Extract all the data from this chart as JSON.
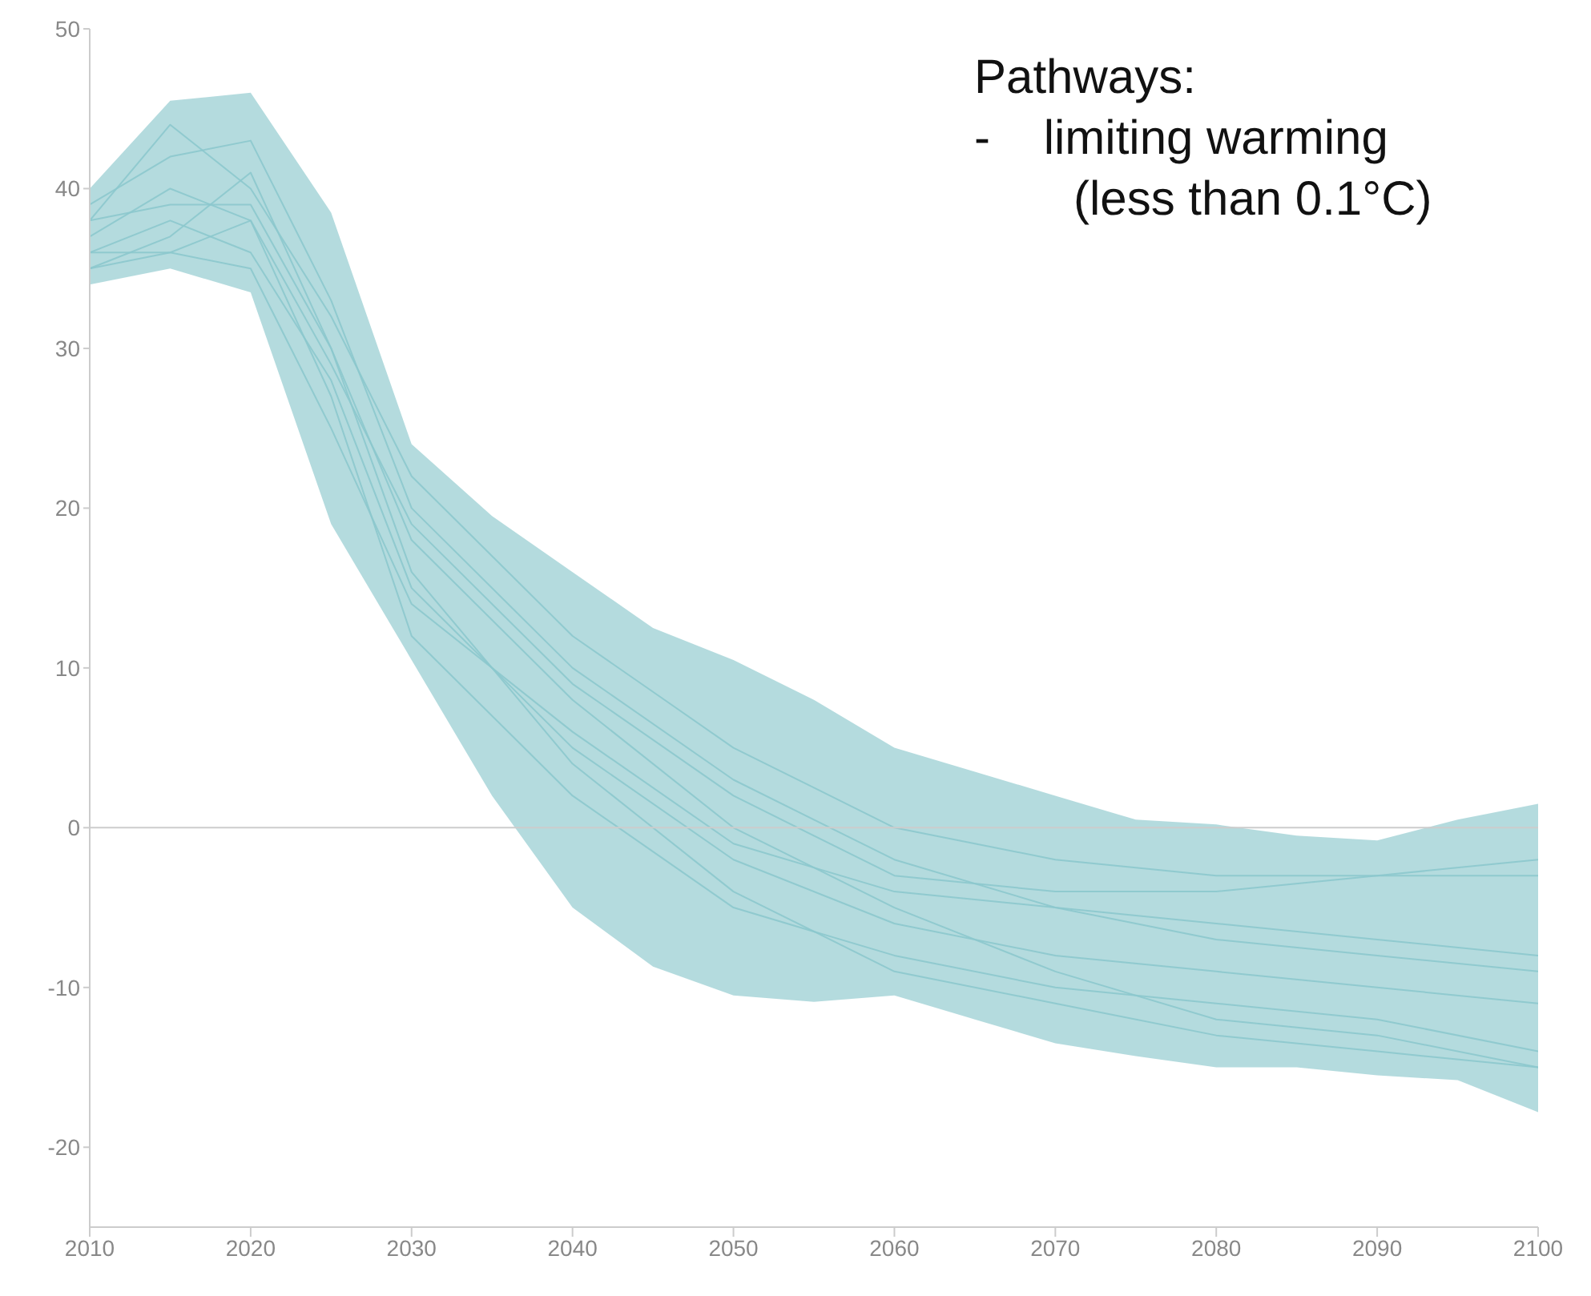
{
  "chart_data": {
    "type": "line",
    "annotations": [
      "Pathways:",
      "-    limiting warming",
      "(less than 0.1°C)"
    ],
    "xlim": [
      2010,
      2100
    ],
    "xticks": [
      2010,
      2020,
      2030,
      2040,
      2050,
      2060,
      2070,
      2080,
      2090,
      2100
    ],
    "ylim": [
      -25,
      50
    ],
    "yticks": [
      -20,
      -10,
      0,
      10,
      20,
      30,
      40,
      50
    ],
    "marker": "none",
    "ref_lines": [
      {
        "axis": "y",
        "value": 0,
        "color": "#cccccc"
      }
    ],
    "series": [
      {
        "color": "#8cc8cd",
        "x": [
          2010,
          2015,
          2020,
          2025,
          2030,
          2035,
          2040,
          2045,
          2050,
          2055,
          2060,
          2065,
          2070,
          2075,
          2080,
          2085,
          2090,
          2095,
          2100
        ],
        "values": [
          38,
          44,
          40,
          32,
          22,
          17,
          12,
          8.5,
          5,
          2.5,
          0,
          -1,
          -2,
          -2.5,
          -3,
          -3,
          -3,
          -3,
          -3
        ],
        "lower": [
          34,
          35,
          33.5,
          19,
          10.5,
          2,
          -5,
          -8.7,
          -10.5,
          -10.9,
          -10.5,
          -12,
          -13.5,
          -14.3,
          -15,
          -15,
          -15.5,
          -15.8,
          -17.8
        ],
        "upper": [
          40,
          45.5,
          46,
          38.5,
          24,
          19.5,
          16,
          12.5,
          10.5,
          8,
          5,
          3.5,
          2,
          0.5,
          0.2,
          -0.5,
          -0.8,
          0.5,
          1.5
        ]
      },
      {
        "color": "#8cc8cd",
        "x": [
          2010,
          2015,
          2020,
          2025,
          2030,
          2040,
          2050,
          2060,
          2070,
          2080,
          2090,
          2100
        ],
        "values": [
          36,
          38,
          36,
          28,
          15,
          5,
          -2,
          -6,
          -8,
          -9,
          -10,
          -11
        ]
      },
      {
        "color": "#8cc8cd",
        "x": [
          2010,
          2015,
          2020,
          2025,
          2030,
          2040,
          2050,
          2060,
          2070,
          2080,
          2090,
          2100
        ],
        "values": [
          35,
          37,
          41,
          30,
          18,
          8,
          0,
          -5,
          -9,
          -12,
          -13,
          -15
        ]
      },
      {
        "color": "#8cc8cd",
        "x": [
          2010,
          2015,
          2020,
          2025,
          2030,
          2040,
          2050,
          2060,
          2070,
          2080,
          2090,
          2100
        ],
        "values": [
          37,
          40,
          38,
          27,
          12,
          2,
          -5,
          -8,
          -10,
          -11,
          -12,
          -14
        ]
      },
      {
        "color": "#8cc8cd",
        "x": [
          2010,
          2015,
          2020,
          2025,
          2030,
          2040,
          2050,
          2060,
          2070,
          2080,
          2090,
          2100
        ],
        "values": [
          39,
          42,
          43,
          33,
          20,
          10,
          3,
          -2,
          -5,
          -7,
          -8,
          -9
        ]
      },
      {
        "color": "#8cc8cd",
        "x": [
          2010,
          2015,
          2020,
          2025,
          2030,
          2040,
          2050,
          2060,
          2070,
          2080,
          2090,
          2100
        ],
        "values": [
          36,
          36,
          35,
          25,
          14,
          6,
          -1,
          -4,
          -5,
          -6,
          -7,
          -8
        ]
      },
      {
        "color": "#8cc8cd",
        "x": [
          2010,
          2015,
          2020,
          2025,
          2030,
          2040,
          2050,
          2060,
          2070,
          2080,
          2090,
          2100
        ],
        "values": [
          38,
          39,
          39,
          30,
          16,
          4,
          -4,
          -9,
          -11,
          -13,
          -14,
          -15
        ]
      },
      {
        "color": "#8cc8cd",
        "x": [
          2010,
          2015,
          2020,
          2025,
          2030,
          2040,
          2050,
          2060,
          2070,
          2080,
          2090,
          2100
        ],
        "values": [
          35,
          36,
          38,
          29,
          19,
          9,
          2,
          -3,
          -4,
          -4,
          -3,
          -2
        ]
      }
    ]
  }
}
